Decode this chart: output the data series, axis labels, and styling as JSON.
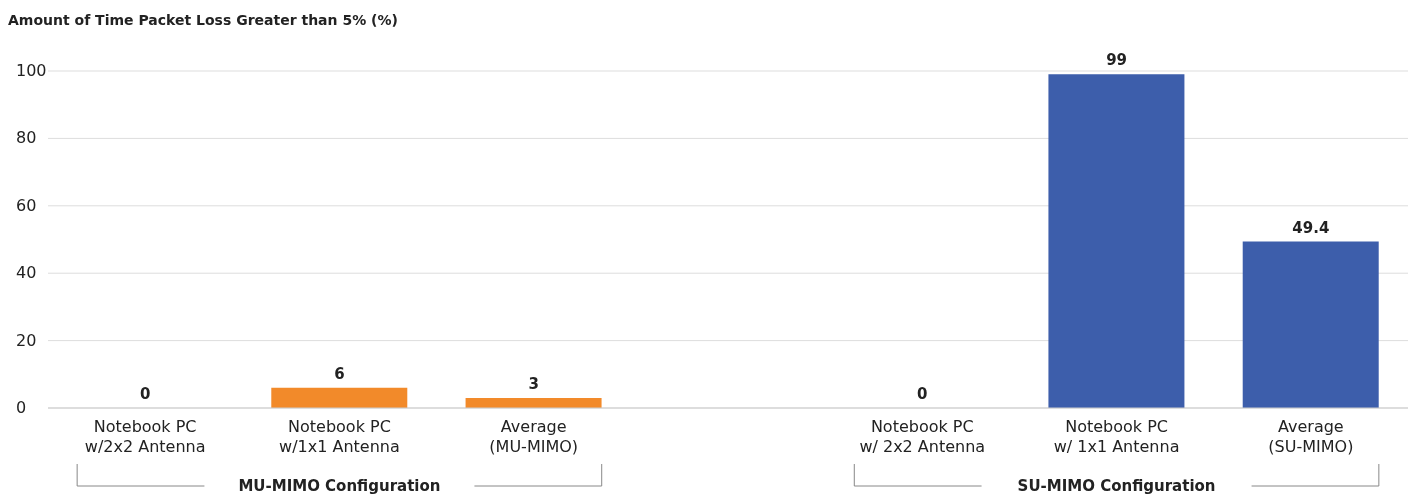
{
  "chart_data": {
    "type": "bar",
    "ylabel": "Amount of Time Packet Loss Greater than 5% (%)",
    "categories": [
      "Notebook PC\nw/2x2 Antenna",
      "Notebook PC\nw/1x1 Antenna",
      "Average\n(MU-MIMO)",
      null,
      "Notebook PC\nw/ 2x2 Antenna",
      "Notebook PC\nw/ 1x1 Antenna",
      "Average\n(SU-MIMO)"
    ],
    "series": [
      {
        "color": "#f28a2a",
        "values": [
          0,
          6,
          3,
          null,
          null,
          null,
          null
        ]
      },
      {
        "color": "#3d5eab",
        "values": [
          null,
          null,
          null,
          null,
          0,
          99,
          49.4
        ]
      }
    ],
    "ylim": [
      0,
      100
    ],
    "yticks": [
      0,
      20,
      40,
      60,
      80,
      100
    ],
    "grid": "y",
    "data_labels": true,
    "annotations": [
      "MU-MIMO Configuration",
      "SU-MIMO Configuration"
    ]
  }
}
